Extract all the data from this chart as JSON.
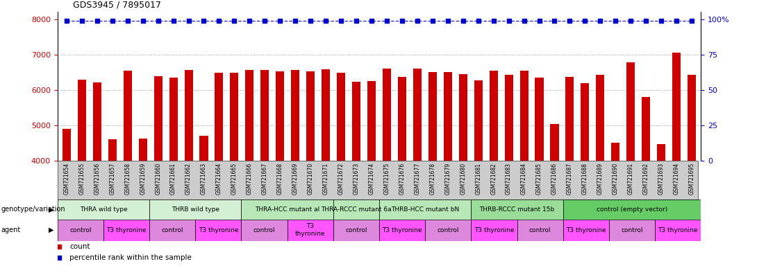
{
  "title": "GDS3945 / 7895017",
  "ylim_left": [
    4000,
    8000
  ],
  "yticks_left": [
    4000,
    5000,
    6000,
    7000,
    8000
  ],
  "yticks_right": [
    0,
    25,
    50,
    75,
    100
  ],
  "bar_color": "#cc0000",
  "percentile_color": "#0000cc",
  "samples": [
    "GSM721654",
    "GSM721655",
    "GSM721656",
    "GSM721657",
    "GSM721658",
    "GSM721659",
    "GSM721660",
    "GSM721661",
    "GSM721662",
    "GSM721663",
    "GSM721664",
    "GSM721665",
    "GSM721666",
    "GSM721667",
    "GSM721668",
    "GSM721669",
    "GSM721670",
    "GSM721671",
    "GSM721672",
    "GSM721673",
    "GSM721674",
    "GSM721675",
    "GSM721676",
    "GSM721677",
    "GSM721678",
    "GSM721679",
    "GSM721680",
    "GSM721681",
    "GSM721682",
    "GSM721683",
    "GSM721684",
    "GSM721685",
    "GSM721686",
    "GSM721687",
    "GSM721688",
    "GSM721689",
    "GSM721690",
    "GSM721691",
    "GSM721692",
    "GSM721693",
    "GSM721694",
    "GSM721695"
  ],
  "bar_heights": [
    4900,
    6300,
    6220,
    4620,
    6550,
    4630,
    6380,
    6350,
    6570,
    4700,
    6480,
    6480,
    6570,
    6570,
    6520,
    6570,
    6520,
    6590,
    6490,
    6230,
    6260,
    6600,
    6370,
    6600,
    6500,
    6500,
    6440,
    6280,
    6550,
    6430,
    6550,
    6350,
    5050,
    6370,
    6200,
    6420,
    4520,
    6780,
    5800,
    4470,
    7050,
    6430
  ],
  "percentile_value": 7950,
  "genotype_groups": [
    {
      "label": "THRA wild type",
      "start": 0,
      "end": 6,
      "color": "#d4f0d4"
    },
    {
      "label": "THRB wild type",
      "start": 6,
      "end": 12,
      "color": "#d4f0d4"
    },
    {
      "label": "THRA-HCC mutant al",
      "start": 12,
      "end": 18,
      "color": "#b8e8b8"
    },
    {
      "label": "THRA-RCCC mutant 6a",
      "start": 18,
      "end": 21,
      "color": "#b8e8b8"
    },
    {
      "label": "THRB-HCC mutant bN",
      "start": 21,
      "end": 27,
      "color": "#b8e8b8"
    },
    {
      "label": "THRB-RCCC mutant 15b",
      "start": 27,
      "end": 33,
      "color": "#99dd99"
    },
    {
      "label": "control (empty vector)",
      "start": 33,
      "end": 42,
      "color": "#66cc66"
    }
  ],
  "agent_groups": [
    {
      "label": "control",
      "start": 0,
      "end": 3,
      "color": "#dd88dd"
    },
    {
      "label": "T3 thyronine",
      "start": 3,
      "end": 6,
      "color": "#ff55ff"
    },
    {
      "label": "control",
      "start": 6,
      "end": 9,
      "color": "#dd88dd"
    },
    {
      "label": "T3 thyronine",
      "start": 9,
      "end": 12,
      "color": "#ff55ff"
    },
    {
      "label": "control",
      "start": 12,
      "end": 15,
      "color": "#dd88dd"
    },
    {
      "label": "T3\nthyronine",
      "start": 15,
      "end": 18,
      "color": "#ff55ff"
    },
    {
      "label": "control",
      "start": 18,
      "end": 21,
      "color": "#dd88dd"
    },
    {
      "label": "T3 thyronine",
      "start": 21,
      "end": 24,
      "color": "#ff55ff"
    },
    {
      "label": "control",
      "start": 24,
      "end": 27,
      "color": "#dd88dd"
    },
    {
      "label": "T3 thyronine",
      "start": 27,
      "end": 30,
      "color": "#ff55ff"
    },
    {
      "label": "control",
      "start": 30,
      "end": 33,
      "color": "#dd88dd"
    },
    {
      "label": "T3 thyronine",
      "start": 33,
      "end": 36,
      "color": "#ff55ff"
    },
    {
      "label": "control",
      "start": 36,
      "end": 39,
      "color": "#dd88dd"
    },
    {
      "label": "T3 thyronine",
      "start": 39,
      "end": 42,
      "color": "#ff55ff"
    }
  ],
  "label_bg": "#cccccc",
  "legend_count_color": "#cc0000",
  "legend_pct_color": "#0000cc"
}
